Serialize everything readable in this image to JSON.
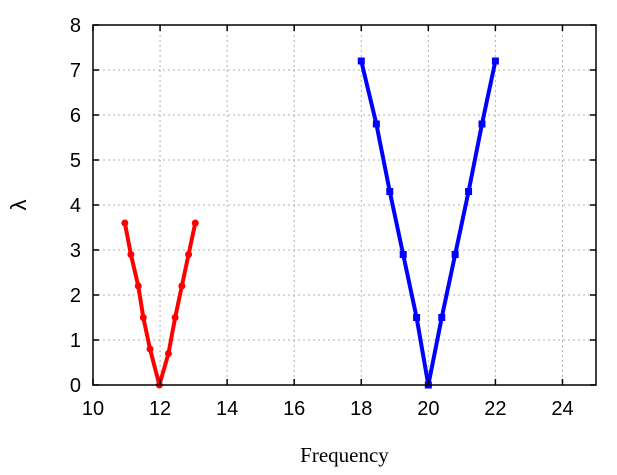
{
  "chart_data": {
    "type": "line",
    "title": "",
    "xlabel": "Frequency",
    "ylabel": "λ",
    "xlim": [
      10,
      25
    ],
    "ylim": [
      0,
      8
    ],
    "xticks": [
      10,
      12,
      14,
      16,
      18,
      20,
      22,
      24
    ],
    "yticks": [
      0,
      1,
      2,
      3,
      4,
      5,
      6,
      7,
      8
    ],
    "grid": true,
    "legend": "none",
    "series": [
      {
        "color": "#ff0000",
        "marker": "circle",
        "x": [
          10.95,
          11.13,
          11.35,
          11.5,
          11.7,
          11.98,
          12.25,
          12.45,
          12.65,
          12.85,
          13.05
        ],
        "y": [
          3.6,
          2.9,
          2.2,
          1.5,
          0.8,
          0.0,
          0.7,
          1.5,
          2.2,
          2.9,
          3.6
        ]
      },
      {
        "color": "#0000ff",
        "marker": "square",
        "x": [
          18.0,
          18.45,
          18.85,
          19.25,
          19.65,
          20.0,
          20.4,
          20.8,
          21.2,
          21.6,
          22.0
        ],
        "y": [
          7.2,
          5.8,
          4.3,
          2.9,
          1.5,
          0.0,
          1.5,
          2.9,
          4.3,
          5.8,
          7.2
        ]
      }
    ]
  }
}
